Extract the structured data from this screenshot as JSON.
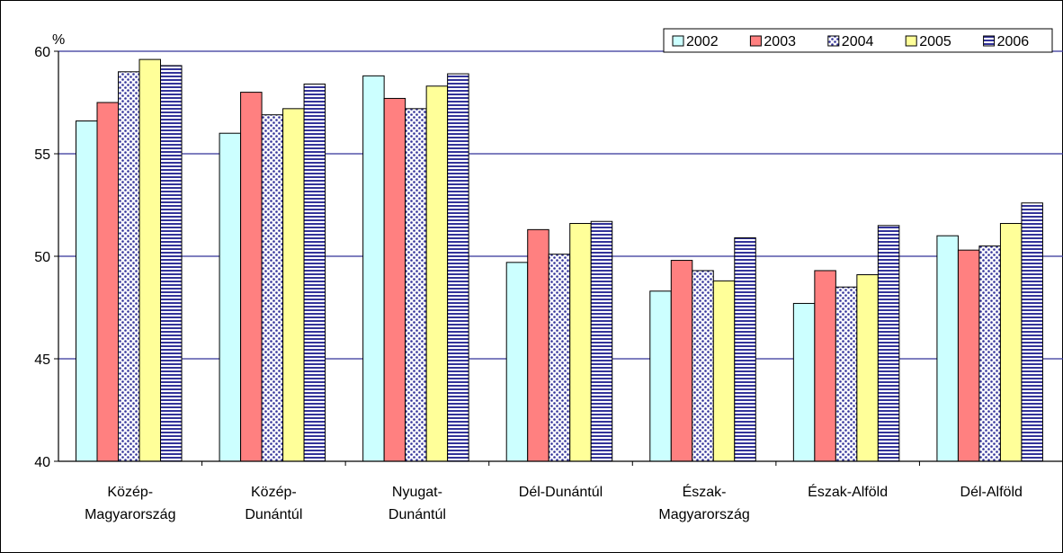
{
  "chart_data": {
    "type": "bar",
    "ylabel": "%",
    "ylim": [
      40,
      60
    ],
    "yticks": [
      40,
      45,
      50,
      55,
      60
    ],
    "grid": true,
    "legend_position": "top-right",
    "categories": [
      [
        "Közép-",
        "Magyarország"
      ],
      [
        "Közép-",
        "Dunántúl"
      ],
      [
        "Nyugat-",
        "Dunántúl"
      ],
      [
        "Dél-Dunántúl"
      ],
      [
        "Észak-",
        "Magyarország"
      ],
      [
        "Észak-Alföld"
      ],
      [
        "Dél-Alföld"
      ]
    ],
    "series": [
      {
        "name": "2002",
        "color": "#ccffff",
        "pattern": "solid",
        "values": [
          56.6,
          56.0,
          58.8,
          49.7,
          48.3,
          47.7,
          51.0
        ]
      },
      {
        "name": "2003",
        "color": "#ff8080",
        "pattern": "solid",
        "values": [
          57.5,
          58.0,
          57.7,
          51.3,
          49.8,
          49.3,
          50.3
        ]
      },
      {
        "name": "2004",
        "color": "#333399",
        "pattern": "dots",
        "values": [
          59.0,
          56.9,
          57.2,
          50.1,
          49.3,
          48.5,
          50.5
        ]
      },
      {
        "name": "2005",
        "color": "#ffff99",
        "pattern": "solid",
        "values": [
          59.6,
          57.2,
          58.3,
          51.6,
          48.8,
          49.1,
          51.6
        ]
      },
      {
        "name": "2006",
        "color": "#333399",
        "pattern": "hstripes",
        "values": [
          59.3,
          58.4,
          58.9,
          51.7,
          50.9,
          51.5,
          52.6
        ]
      }
    ]
  }
}
